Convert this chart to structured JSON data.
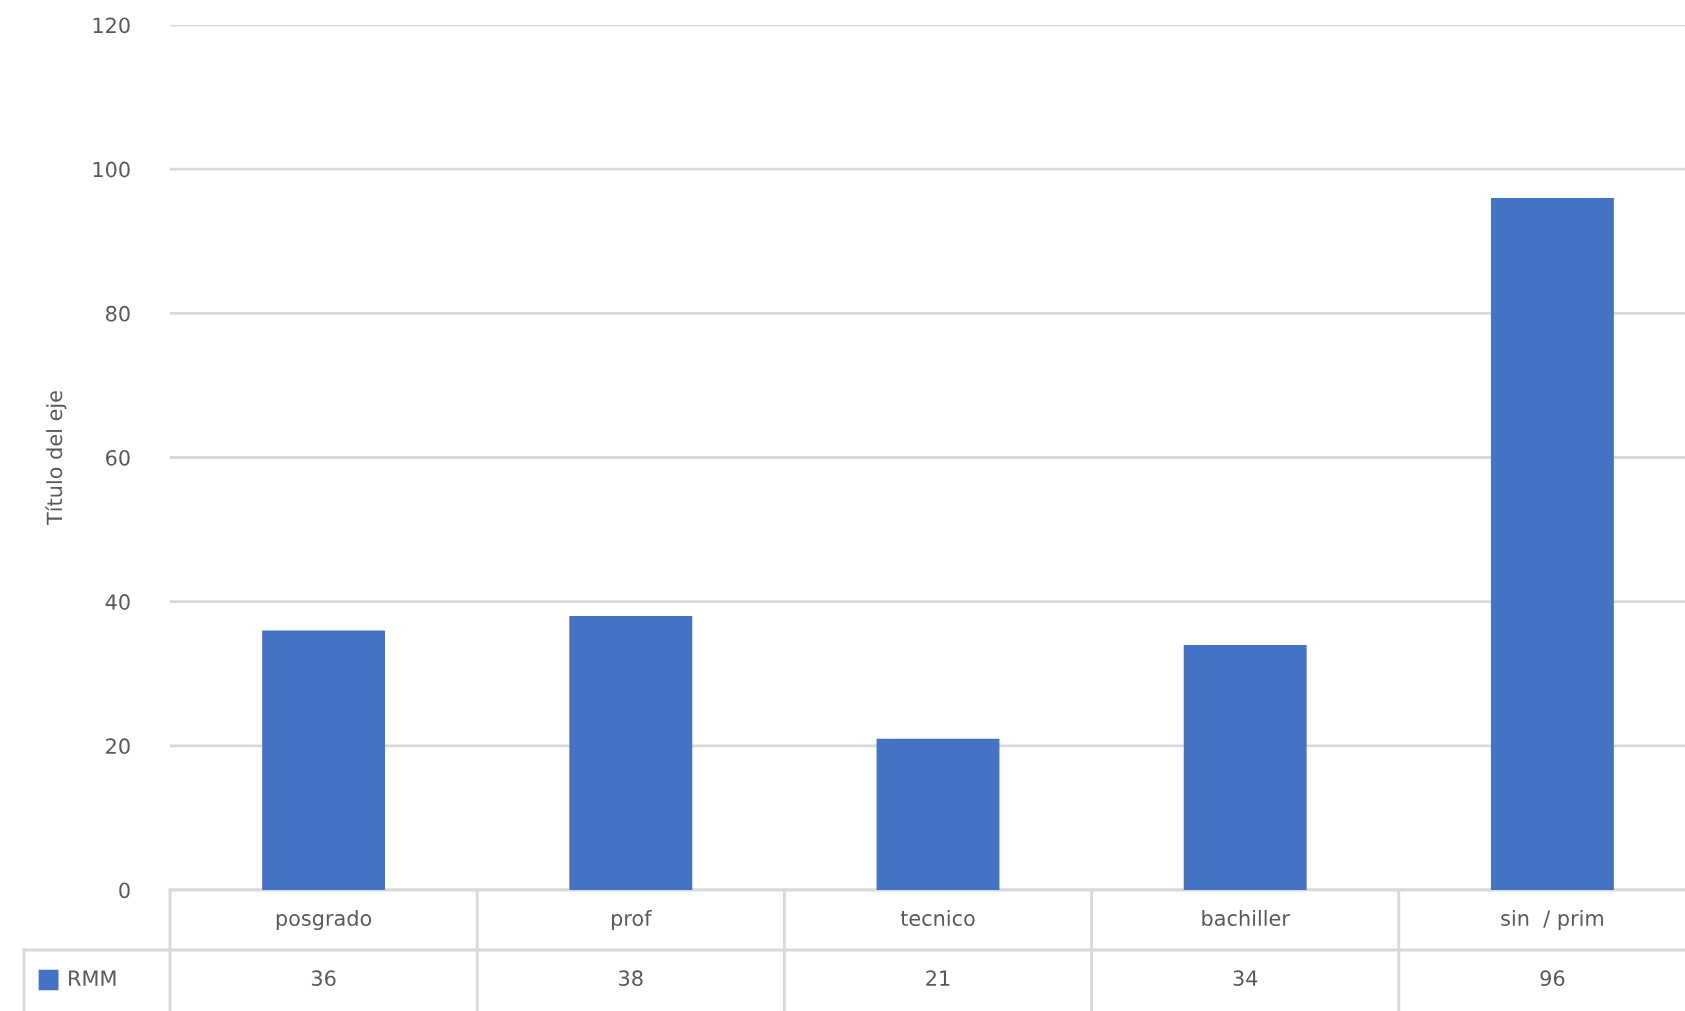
{
  "chart_data": {
    "type": "bar",
    "ylabel": "Título del eje",
    "categories": [
      "posgrado",
      "prof",
      "tecnico",
      "bachiller",
      "sin  / prim"
    ],
    "series": [
      {
        "name": "RMM",
        "color": "#4472c4",
        "values": [
          36,
          38,
          21,
          34,
          96
        ]
      }
    ],
    "ylim": [
      0,
      120
    ],
    "yticks": [
      0,
      20,
      40,
      60,
      80,
      100,
      120
    ],
    "grid": "y",
    "legend": "bottom",
    "data_labels": true
  }
}
